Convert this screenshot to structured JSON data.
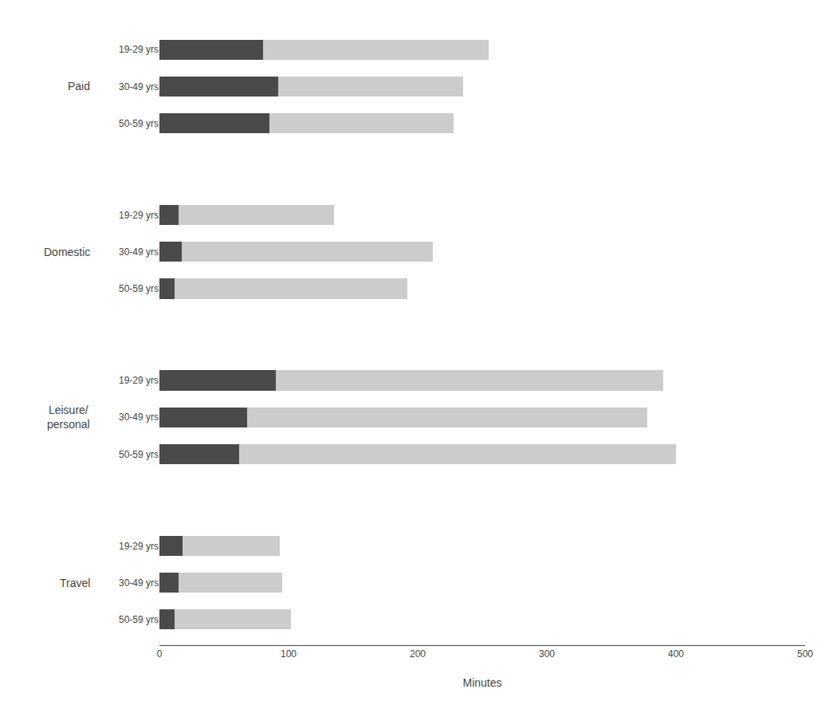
{
  "chart_data": {
    "type": "bar",
    "orientation": "horizontal",
    "stacked": true,
    "xlabel": "Minutes",
    "groups": [
      {
        "name": "Paid",
        "categories": [
          "19-29 yrs",
          "30-49 yrs",
          "50-59 yrs"
        ]
      },
      {
        "name": "Domestic",
        "categories": [
          "19-29 yrs",
          "30-49 yrs",
          "50-59 yrs"
        ]
      },
      {
        "name": "Leisure/\npersonal",
        "categories": [
          "19-29 yrs",
          "30-49 yrs",
          "50-59 yrs"
        ]
      },
      {
        "name": "Travel",
        "categories": [
          "19-29 yrs",
          "30-49 yrs",
          "50-59 yrs"
        ]
      }
    ],
    "series": [
      {
        "color": "#4a4a4a",
        "values": [
          80,
          92,
          85,
          15,
          17,
          12,
          90,
          68,
          62,
          18,
          15,
          12
        ]
      },
      {
        "color": "#cccccc",
        "values": [
          175,
          143,
          143,
          120,
          195,
          180,
          300,
          310,
          338,
          75,
          80,
          90
        ]
      }
    ],
    "xlim": [
      0,
      500
    ],
    "xticks": [
      0,
      100,
      200,
      300,
      400,
      500
    ],
    "grid": false
  }
}
